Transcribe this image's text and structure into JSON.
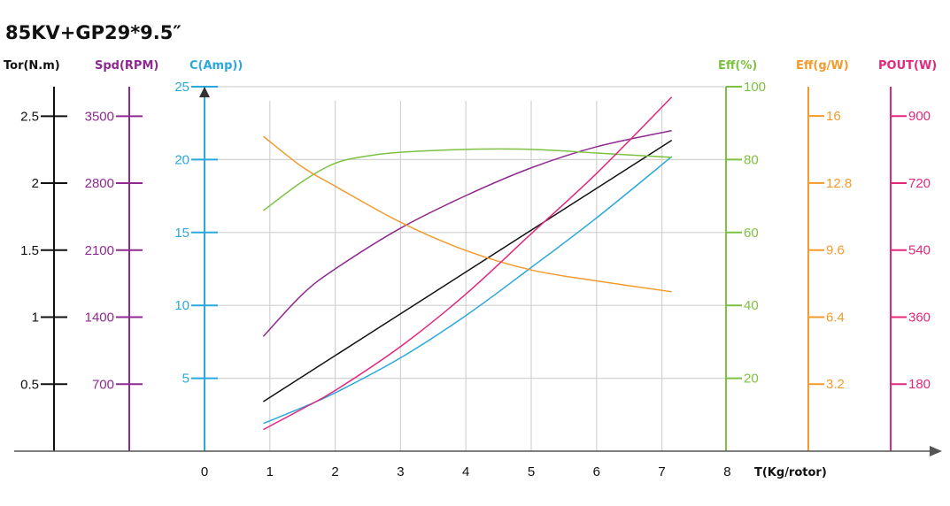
{
  "chart_data": {
    "type": "line",
    "title": "85KV+GP29*9.5″",
    "xlabel": "T(Kg/rotor)",
    "xlim": [
      0,
      8
    ],
    "x_ticks": [
      "0",
      "1",
      "2",
      "3",
      "4",
      "5",
      "6",
      "7",
      "8"
    ],
    "grid": true,
    "axes": [
      {
        "key": "tor",
        "label": "Tor(N.m)",
        "color": "#111111",
        "min": 0,
        "max": 2.72,
        "ticks": [
          {
            "v": 0.5,
            "t": "0.5"
          },
          {
            "v": 1,
            "t": "1"
          },
          {
            "v": 1.5,
            "t": "1.5"
          },
          {
            "v": 2,
            "t": "2"
          },
          {
            "v": 2.5,
            "t": "2.5"
          }
        ]
      },
      {
        "key": "spd",
        "label": "Spd(RPM)",
        "color": "#8e2a8f",
        "min": 0,
        "max": 3808,
        "ticks": [
          {
            "v": 700,
            "t": "700"
          },
          {
            "v": 1400,
            "t": "1400"
          },
          {
            "v": 2100,
            "t": "2100"
          },
          {
            "v": 2800,
            "t": "2800"
          },
          {
            "v": 3500,
            "t": "3500"
          }
        ]
      },
      {
        "key": "amp",
        "label": "C(Amp))",
        "color": "#2aa8dc",
        "min": 0,
        "max": 25,
        "ticks": [
          {
            "v": 5,
            "t": "5"
          },
          {
            "v": 10,
            "t": "10"
          },
          {
            "v": 15,
            "t": "15"
          },
          {
            "v": 20,
            "t": "20"
          },
          {
            "v": 25,
            "t": "25"
          }
        ]
      },
      {
        "key": "eff",
        "label": "Eff(%)",
        "color": "#7dc142",
        "min": 0,
        "max": 100,
        "ticks": [
          {
            "v": 20,
            "t": "20"
          },
          {
            "v": 40,
            "t": "40"
          },
          {
            "v": 60,
            "t": "60"
          },
          {
            "v": 80,
            "t": "80"
          },
          {
            "v": 100,
            "t": "100"
          }
        ]
      },
      {
        "key": "effg",
        "label": "Eff(g/W)",
        "color": "#f39a2c",
        "min": 0,
        "max": 17.4,
        "ticks": [
          {
            "v": 3.2,
            "t": "3.2"
          },
          {
            "v": 6.4,
            "t": "6.4"
          },
          {
            "v": 9.6,
            "t": "9.6"
          },
          {
            "v": 12.8,
            "t": "12.8"
          },
          {
            "v": 16,
            "t": "16"
          }
        ]
      },
      {
        "key": "pout",
        "label": "POUT(W)",
        "color": "#e3287c",
        "min": 0,
        "max": 979,
        "ticks": [
          {
            "v": 180,
            "t": "180"
          },
          {
            "v": 360,
            "t": "360"
          },
          {
            "v": 540,
            "t": "540"
          },
          {
            "v": 720,
            "t": "720"
          },
          {
            "v": 900,
            "t": "900"
          }
        ]
      }
    ],
    "series": [
      {
        "axis": "tor",
        "color": "#111111",
        "x": [
          0.9,
          7.15
        ],
        "y": [
          0.37,
          2.32
        ]
      },
      {
        "axis": "spd",
        "color": "#8e2a8f",
        "x": [
          0.9,
          1.5,
          2,
          3,
          4,
          5,
          6,
          7.15
        ],
        "y": [
          1199,
          1640,
          1904,
          2330,
          2670,
          2960,
          3180,
          3349
        ]
      },
      {
        "axis": "amp",
        "color": "#2aa8dc",
        "x": [
          0.9,
          1.5,
          2,
          3,
          4,
          5,
          6,
          7.15
        ],
        "y": [
          1.9,
          3.0,
          4.0,
          6.4,
          9.3,
          12.6,
          16.0,
          20.2
        ]
      },
      {
        "axis": "eff",
        "color": "#7dc142",
        "x": [
          0.9,
          1.5,
          2,
          2.5,
          3,
          4,
          5,
          6,
          7.15
        ],
        "y": [
          66,
          74,
          79,
          81,
          82,
          82.8,
          82.8,
          81.8,
          80.6
        ]
      },
      {
        "axis": "effg",
        "color": "#f39a2c",
        "x": [
          0.9,
          1.5,
          2,
          3,
          4,
          5,
          6,
          7.15
        ],
        "y": [
          15.03,
          13.56,
          12.65,
          10.93,
          9.58,
          8.65,
          8.13,
          7.61
        ]
      },
      {
        "axis": "pout",
        "color": "#e3287c",
        "x": [
          0.9,
          1.5,
          2,
          3,
          4,
          5,
          6,
          7.15
        ],
        "y": [
          58,
          114,
          163,
          281,
          422,
          584,
          746,
          951
        ]
      }
    ]
  }
}
